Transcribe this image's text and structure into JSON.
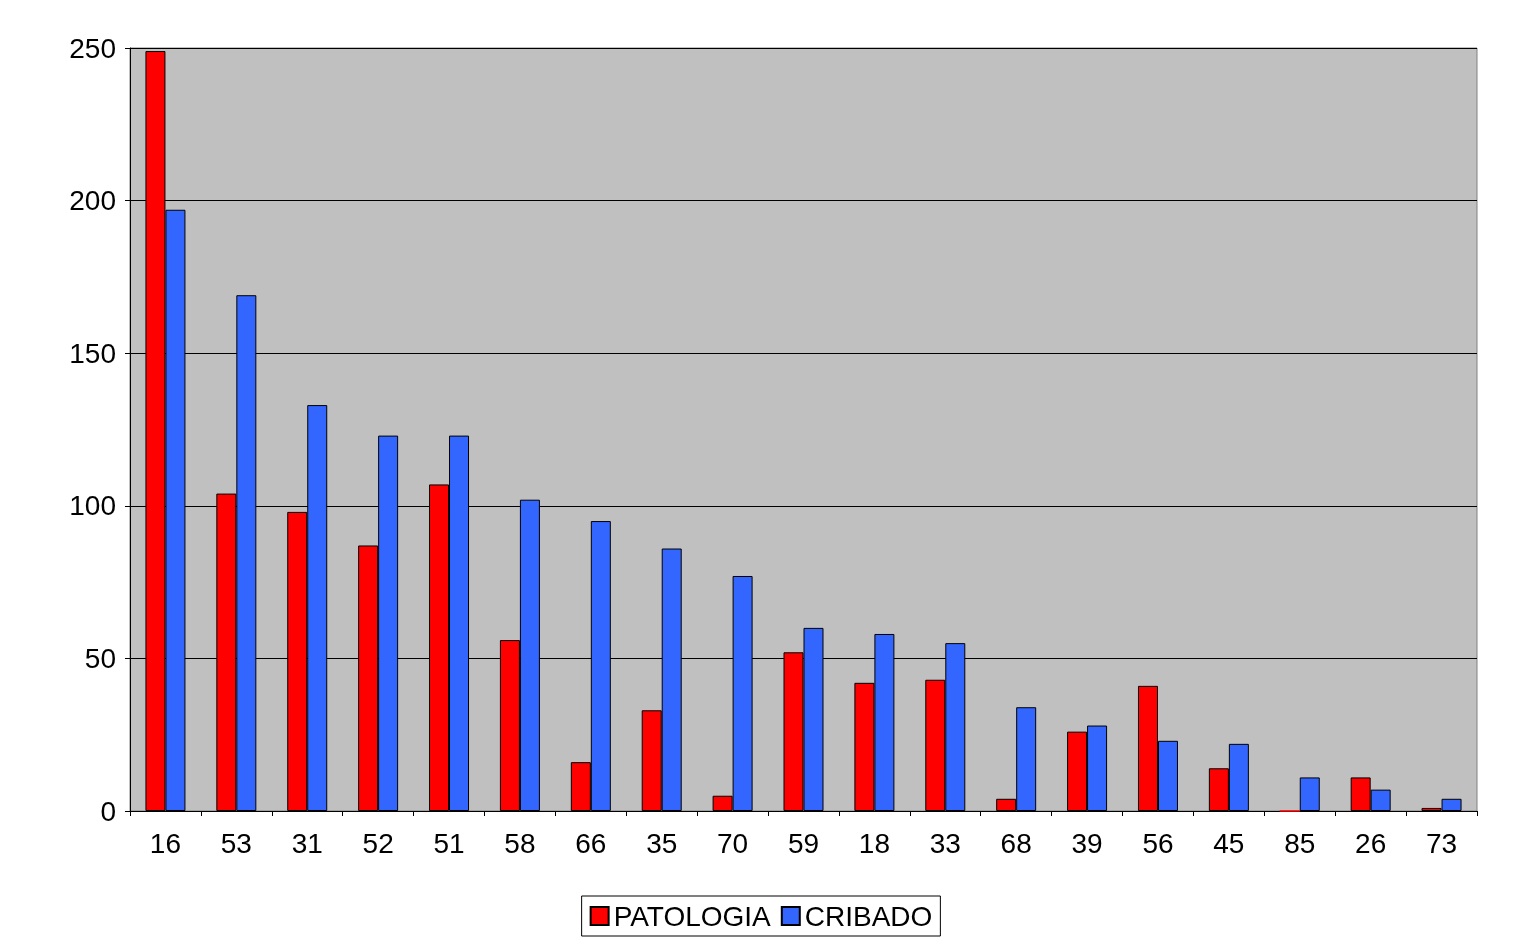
{
  "chart_data": {
    "type": "bar",
    "categories": [
      "16",
      "53",
      "31",
      "52",
      "51",
      "58",
      "66",
      "35",
      "70",
      "59",
      "18",
      "33",
      "68",
      "39",
      "56",
      "45",
      "85",
      "26",
      "73"
    ],
    "series": [
      {
        "name": "PATOLOGIA",
        "color": "#ff0000",
        "values": [
          249,
          104,
          98,
          87,
          107,
          56,
          16,
          33,
          5,
          52,
          42,
          43,
          4,
          26,
          41,
          14,
          0,
          11,
          1
        ]
      },
      {
        "name": "CRIBADO",
        "color": "#3366ff",
        "values": [
          197,
          169,
          133,
          123,
          123,
          102,
          95,
          86,
          77,
          60,
          58,
          55,
          34,
          28,
          23,
          22,
          11,
          7,
          4
        ]
      }
    ],
    "ylim": [
      0,
      250
    ],
    "yticks": [
      0,
      50,
      100,
      150,
      200,
      250
    ],
    "grid": "y",
    "legend": "bottom"
  }
}
